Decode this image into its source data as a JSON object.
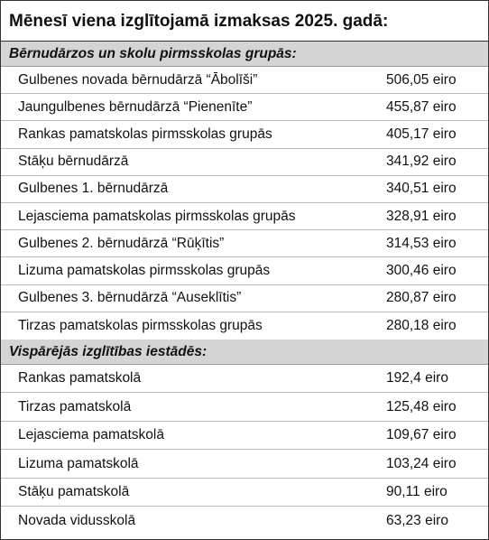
{
  "title": "Mēnesī viena izglītojamā izmaksas 2025. gadā:",
  "sections": [
    {
      "heading": "Bērnudārzos un skolu pirmsskolas grupās:",
      "rows": [
        {
          "name": "Gulbenes novada bērnudārzā “Ābolīši”",
          "value": "506,05 eiro"
        },
        {
          "name": "Jaungulbenes bērnudārzā “Pienenīte”",
          "value": "455,87 eiro"
        },
        {
          "name": "Rankas pamatskolas pirmsskolas grupās",
          "value": "405,17 eiro"
        },
        {
          "name": "Stāķu bērnudārzā",
          "value": "341,92 eiro"
        },
        {
          "name": "Gulbenes 1. bērnudārzā",
          "value": "340,51 eiro"
        },
        {
          "name": "Lejasciema pamatskolas pirmsskolas grupās",
          "value": "328,91 eiro"
        },
        {
          "name": "Gulbenes 2. bērnudārzā “Rūķītis”",
          "value": "314,53 eiro"
        },
        {
          "name": "Lizuma pamatskolas pirmsskolas grupās",
          "value": "300,46 eiro"
        },
        {
          "name": "Gulbenes 3. bērnudārzā “Auseklītis”",
          "value": "280,87 eiro"
        },
        {
          "name": "Tirzas pamatskolas pirmsskolas grupās",
          "value": "280,18 eiro"
        }
      ]
    },
    {
      "heading": "Vispārējās izglītības iestādēs:",
      "rows": [
        {
          "name": "Rankas pamatskolā",
          "value": "192,4 eiro"
        },
        {
          "name": "Tirzas pamatskolā",
          "value": "125,48 eiro"
        },
        {
          "name": "Lejasciema pamatskolā",
          "value": "109,67 eiro"
        },
        {
          "name": "Lizuma pamatskolā",
          "value": "103,24 eiro"
        },
        {
          "name": "Stāķu pamatskolā",
          "value": "90,11 eiro"
        },
        {
          "name": "Novada vidusskolā",
          "value": "63,23 eiro"
        }
      ]
    }
  ]
}
